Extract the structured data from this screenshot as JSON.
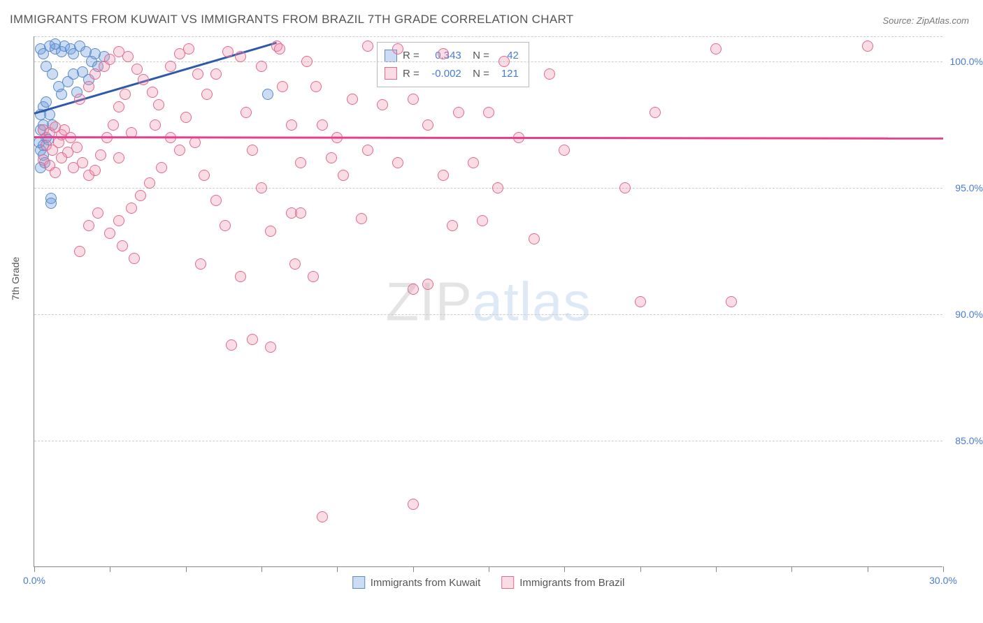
{
  "title": "IMMIGRANTS FROM KUWAIT VS IMMIGRANTS FROM BRAZIL 7TH GRADE CORRELATION CHART",
  "source": "Source: ZipAtlas.com",
  "ylabel": "7th Grade",
  "watermark": {
    "prefix": "ZIP",
    "suffix": "atlas"
  },
  "chart": {
    "type": "scatter",
    "xlim": [
      0,
      30
    ],
    "ylim": [
      80,
      101
    ],
    "x_ticks": [
      0,
      2.5,
      5,
      7.5,
      10,
      12.5,
      15,
      17.5,
      20,
      22.5,
      25,
      27.5,
      30
    ],
    "x_tick_labels": {
      "0": "0.0%",
      "30": "30.0%"
    },
    "y_gridlines": [
      85,
      90,
      95,
      100,
      101
    ],
    "y_tick_labels": {
      "85": "85.0%",
      "90": "90.0%",
      "95": "95.0%",
      "100": "100.0%"
    },
    "background_color": "#ffffff",
    "grid_color": "#cccccc",
    "axis_color": "#888888",
    "tick_label_color": "#4a7bd0",
    "point_radius": 8,
    "series": [
      {
        "name": "Immigrants from Kuwait",
        "key": "kuwait",
        "fill": "rgba(106,156,220,0.35)",
        "stroke": "#5a8ac8",
        "R": "0.343",
        "N": "42",
        "trend": {
          "x1": 0,
          "y1": 98.0,
          "x2": 8.0,
          "y2": 100.8,
          "color": "#2e5aa8"
        },
        "points": [
          [
            0.2,
            100.5
          ],
          [
            0.3,
            100.3
          ],
          [
            0.5,
            100.6
          ],
          [
            0.7,
            100.5
          ],
          [
            0.9,
            100.4
          ],
          [
            1.0,
            100.6
          ],
          [
            1.2,
            100.5
          ],
          [
            1.3,
            100.3
          ],
          [
            1.5,
            100.6
          ],
          [
            1.7,
            100.4
          ],
          [
            0.4,
            99.8
          ],
          [
            0.6,
            99.5
          ],
          [
            0.8,
            99.0
          ],
          [
            0.9,
            98.7
          ],
          [
            1.1,
            99.2
          ],
          [
            1.3,
            99.5
          ],
          [
            1.4,
            98.8
          ],
          [
            1.6,
            99.6
          ],
          [
            1.8,
            99.3
          ],
          [
            1.9,
            100.0
          ],
          [
            2.0,
            100.3
          ],
          [
            2.1,
            99.8
          ],
          [
            2.3,
            100.2
          ],
          [
            0.3,
            98.2
          ],
          [
            0.5,
            97.9
          ],
          [
            0.6,
            97.5
          ],
          [
            0.2,
            97.3
          ],
          [
            0.3,
            97.5
          ],
          [
            0.4,
            97.0
          ],
          [
            0.3,
            96.7
          ],
          [
            0.15,
            96.8
          ],
          [
            0.2,
            96.5
          ],
          [
            0.45,
            96.9
          ],
          [
            0.3,
            96.3
          ],
          [
            0.35,
            96.0
          ],
          [
            0.2,
            95.8
          ],
          [
            0.55,
            94.6
          ],
          [
            0.55,
            94.4
          ],
          [
            0.2,
            97.9
          ],
          [
            0.4,
            98.4
          ],
          [
            0.7,
            100.7
          ],
          [
            7.7,
            98.7
          ]
        ]
      },
      {
        "name": "Immigrants from Brazil",
        "key": "brazil",
        "fill": "rgba(238,140,170,0.30)",
        "stroke": "#e06a90",
        "R": "-0.002",
        "N": "121",
        "trend": {
          "x1": 0,
          "y1": 97.05,
          "x2": 30,
          "y2": 97.0,
          "color": "#e83e8c"
        },
        "points": [
          [
            0.3,
            97.3
          ],
          [
            0.5,
            97.2
          ],
          [
            0.7,
            97.4
          ],
          [
            0.9,
            97.1
          ],
          [
            1.0,
            97.3
          ],
          [
            1.2,
            97.0
          ],
          [
            0.4,
            96.7
          ],
          [
            0.6,
            96.5
          ],
          [
            0.8,
            96.8
          ],
          [
            1.1,
            96.4
          ],
          [
            1.4,
            96.6
          ],
          [
            0.3,
            96.1
          ],
          [
            0.5,
            95.9
          ],
          [
            0.7,
            95.6
          ],
          [
            0.9,
            96.2
          ],
          [
            1.3,
            95.8
          ],
          [
            1.6,
            96.0
          ],
          [
            1.8,
            95.5
          ],
          [
            2.0,
            95.7
          ],
          [
            2.2,
            96.3
          ],
          [
            2.4,
            97.0
          ],
          [
            2.6,
            97.5
          ],
          [
            2.8,
            98.2
          ],
          [
            3.0,
            98.7
          ],
          [
            1.5,
            98.5
          ],
          [
            1.8,
            99.0
          ],
          [
            2.0,
            99.5
          ],
          [
            2.3,
            99.8
          ],
          [
            2.5,
            100.1
          ],
          [
            2.8,
            100.4
          ],
          [
            3.1,
            100.2
          ],
          [
            3.4,
            99.7
          ],
          [
            3.6,
            99.3
          ],
          [
            3.9,
            98.8
          ],
          [
            4.1,
            98.3
          ],
          [
            4.0,
            97.5
          ],
          [
            4.5,
            97.0
          ],
          [
            4.8,
            96.5
          ],
          [
            4.2,
            95.8
          ],
          [
            3.8,
            95.2
          ],
          [
            3.5,
            94.7
          ],
          [
            3.2,
            94.2
          ],
          [
            2.8,
            93.7
          ],
          [
            2.5,
            93.2
          ],
          [
            2.9,
            92.7
          ],
          [
            3.3,
            92.2
          ],
          [
            1.8,
            93.5
          ],
          [
            2.1,
            94.0
          ],
          [
            1.5,
            92.5
          ],
          [
            4.5,
            99.8
          ],
          [
            4.8,
            100.3
          ],
          [
            5.1,
            100.5
          ],
          [
            5.4,
            99.5
          ],
          [
            5.7,
            98.7
          ],
          [
            5.0,
            97.8
          ],
          [
            5.3,
            96.8
          ],
          [
            5.6,
            95.5
          ],
          [
            6.0,
            94.5
          ],
          [
            6.3,
            93.5
          ],
          [
            5.5,
            92.0
          ],
          [
            6.8,
            91.5
          ],
          [
            7.2,
            89.0
          ],
          [
            6.0,
            99.5
          ],
          [
            6.4,
            100.4
          ],
          [
            6.8,
            100.2
          ],
          [
            7.0,
            98.0
          ],
          [
            7.2,
            96.5
          ],
          [
            7.5,
            95.0
          ],
          [
            7.8,
            93.3
          ],
          [
            8.0,
            100.6
          ],
          [
            8.1,
            100.5
          ],
          [
            7.5,
            99.8
          ],
          [
            6.5,
            88.8
          ],
          [
            8.2,
            99.0
          ],
          [
            8.5,
            97.5
          ],
          [
            8.8,
            96.0
          ],
          [
            8.5,
            94.0
          ],
          [
            8.8,
            94.0
          ],
          [
            8.6,
            92.0
          ],
          [
            9.2,
            91.5
          ],
          [
            9.0,
            100.0
          ],
          [
            9.3,
            99.0
          ],
          [
            9.5,
            97.5
          ],
          [
            9.8,
            96.2
          ],
          [
            7.8,
            88.7
          ],
          [
            9.5,
            82.0
          ],
          [
            10.0,
            97.0
          ],
          [
            10.5,
            98.5
          ],
          [
            11.0,
            100.6
          ],
          [
            10.2,
            95.5
          ],
          [
            10.8,
            93.8
          ],
          [
            11.5,
            98.3
          ],
          [
            11.0,
            96.5
          ],
          [
            12.0,
            100.5
          ],
          [
            12.5,
            98.5
          ],
          [
            12.0,
            96.0
          ],
          [
            12.5,
            91.0
          ],
          [
            13.0,
            97.5
          ],
          [
            13.5,
            100.3
          ],
          [
            13.0,
            91.2
          ],
          [
            13.5,
            95.5
          ],
          [
            14.0,
            98.0
          ],
          [
            13.8,
            93.5
          ],
          [
            12.5,
            82.5
          ],
          [
            14.5,
            96.0
          ],
          [
            15.0,
            98.0
          ],
          [
            14.8,
            93.7
          ],
          [
            15.5,
            100.0
          ],
          [
            15.3,
            95.0
          ],
          [
            16.0,
            97.0
          ],
          [
            16.5,
            93.0
          ],
          [
            17.0,
            99.5
          ],
          [
            17.5,
            96.5
          ],
          [
            19.5,
            95.0
          ],
          [
            20.5,
            98.0
          ],
          [
            20.0,
            90.5
          ],
          [
            22.5,
            100.5
          ],
          [
            23.0,
            90.5
          ],
          [
            27.5,
            100.6
          ],
          [
            2.8,
            96.2
          ],
          [
            3.2,
            97.2
          ]
        ]
      }
    ]
  },
  "bottom_legend": [
    {
      "label": "Immigrants from Kuwait",
      "fill": "rgba(106,156,220,0.35)",
      "stroke": "#5a8ac8"
    },
    {
      "label": "Immigrants from Brazil",
      "fill": "rgba(238,140,170,0.30)",
      "stroke": "#e06a90"
    }
  ]
}
